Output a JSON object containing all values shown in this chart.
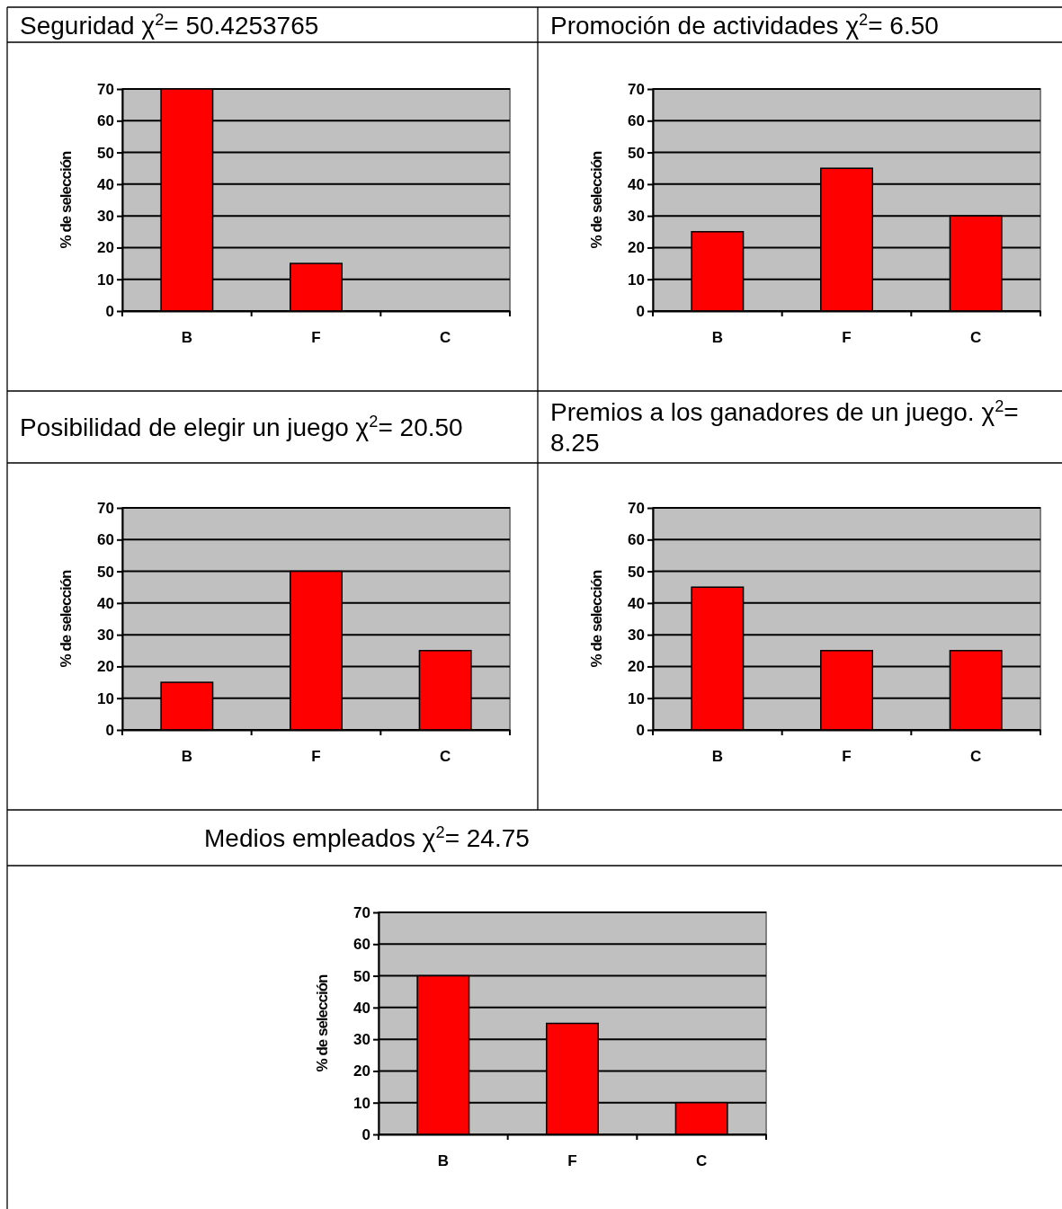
{
  "chart_data": [
    {
      "type": "bar",
      "title": "Seguridad χ$^{2}$= 50.4253765",
      "ylabel": "% de selección",
      "categories": [
        "B",
        "F",
        "C"
      ],
      "values": [
        70,
        15,
        0
      ],
      "color": "#ff0000",
      "ylim": [
        0,
        70
      ],
      "yticks": [
        0,
        10,
        20,
        30,
        40,
        50,
        60,
        70
      ],
      "grid": "y"
    },
    {
      "type": "bar",
      "title": "Promoción de actividades χ$^{2}$= 6.50",
      "ylabel": "% de selección",
      "categories": [
        "B",
        "F",
        "C"
      ],
      "values": [
        25,
        45,
        30
      ],
      "color": "#ff0000",
      "ylim": [
        0,
        70
      ],
      "yticks": [
        0,
        10,
        20,
        30,
        40,
        50,
        60,
        70
      ],
      "grid": "y"
    },
    {
      "type": "bar",
      "title": "Posibilidad de elegir un juego χ$^{2}$= 20.50",
      "ylabel": "% de selección",
      "categories": [
        "B",
        "F",
        "C"
      ],
      "values": [
        15,
        50,
        25
      ],
      "color": "#ff0000",
      "ylim": [
        0,
        70
      ],
      "yticks": [
        0,
        10,
        20,
        30,
        40,
        50,
        60,
        70
      ],
      "grid": "y"
    },
    {
      "type": "bar",
      "title": "Premios a los ganadores de un juego. χ$^{2}$= 8.25",
      "ylabel": "% de selección",
      "categories": [
        "B",
        "F",
        "C"
      ],
      "values": [
        45,
        25,
        25
      ],
      "color": "#ff0000",
      "ylim": [
        0,
        70
      ],
      "yticks": [
        0,
        10,
        20,
        30,
        40,
        50,
        60,
        70
      ],
      "grid": "y"
    },
    {
      "type": "bar",
      "title": "Medios empleados χ$^{2}$= 24.75",
      "ylabel": "% de selección",
      "categories": [
        "B",
        "F",
        "C"
      ],
      "values": [
        50,
        35,
        10
      ],
      "color": "#ff0000",
      "ylim": [
        0,
        70
      ],
      "yticks": [
        0,
        10,
        20,
        30,
        40,
        50,
        60,
        70
      ],
      "grid": "y"
    }
  ]
}
